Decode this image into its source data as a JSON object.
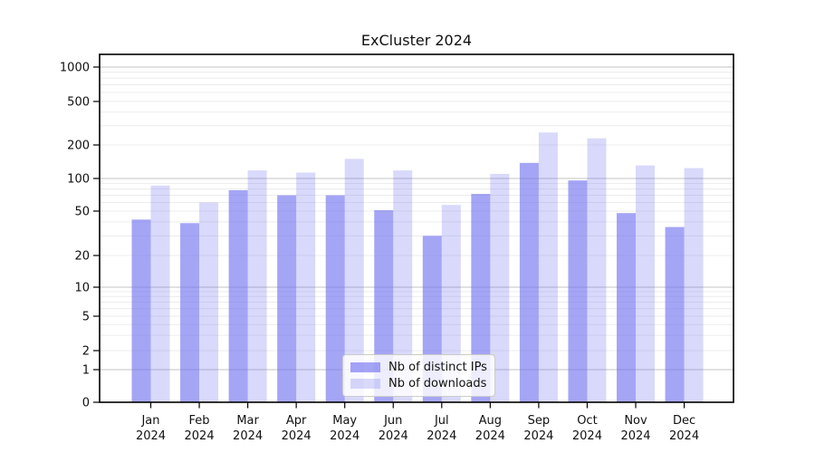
{
  "chart_data": {
    "type": "bar",
    "title": "ExCluster 2024",
    "x_months": [
      "Jan",
      "Feb",
      "Mar",
      "Apr",
      "May",
      "Jun",
      "Jul",
      "Aug",
      "Sep",
      "Oct",
      "Nov",
      "Dec"
    ],
    "x_year": "2024",
    "series": [
      {
        "name": "Nb of distinct IPs",
        "color": "#6e6ef0",
        "opacity": 0.62,
        "values": [
          42,
          39,
          78,
          70,
          70,
          51,
          30,
          72,
          138,
          96,
          48,
          36
        ]
      },
      {
        "name": "Nb of downloads",
        "color": "#6e6ef0",
        "opacity": 0.26,
        "values": [
          86,
          60,
          118,
          113,
          150,
          118,
          57,
          110,
          260,
          230,
          131,
          124
        ]
      }
    ],
    "yscale": "symlog",
    "y_ticks": [
      0,
      1,
      2,
      5,
      10,
      20,
      50,
      100,
      200,
      500,
      1000
    ],
    "ylim": [
      0,
      1300
    ],
    "grid": true,
    "legend_position": "lower center",
    "grid_major_color": "#c3c3c3",
    "grid_minor_color": "#ececec",
    "axis_color": "#000000"
  }
}
